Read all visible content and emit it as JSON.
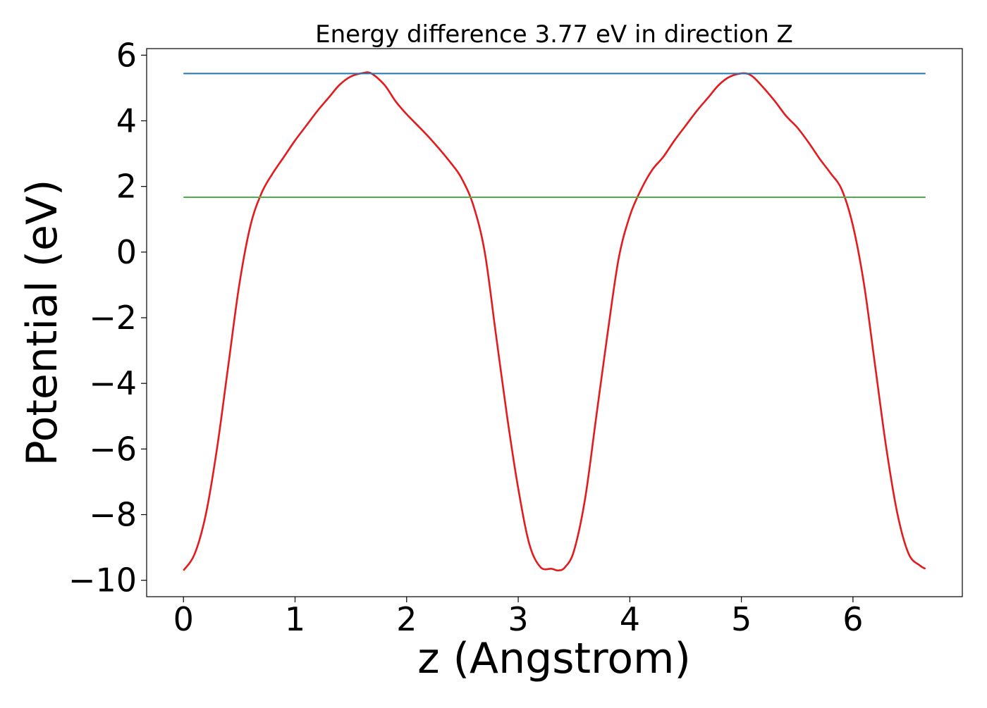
{
  "chart_data": {
    "type": "line",
    "title": "Energy difference 3.77 eV in direction Z",
    "xlabel": "z (Angstrom)",
    "ylabel": "Potential (eV)",
    "xlim": [
      -0.33,
      6.98
    ],
    "ylim": [
      -10.5,
      6.2
    ],
    "xticks": [
      0,
      1,
      2,
      3,
      4,
      5,
      6
    ],
    "yticks": [
      -10,
      -8,
      -6,
      -4,
      -2,
      0,
      2,
      4,
      6
    ],
    "xtick_labels": [
      "0",
      "1",
      "2",
      "3",
      "4",
      "5",
      "6"
    ],
    "ytick_labels": [
      "−10",
      "−8",
      "−6",
      "−4",
      "−2",
      "0",
      "2",
      "4",
      "6"
    ],
    "grid": false,
    "legend": "none",
    "series": [
      {
        "color": "#e41a1c",
        "kind": "curve",
        "x": [
          0,
          0.1,
          0.2,
          0.3,
          0.4,
          0.5,
          0.6,
          0.7,
          0.8,
          0.9,
          1.0,
          1.1,
          1.2,
          1.3,
          1.4,
          1.5,
          1.6,
          1.68,
          1.8,
          1.9,
          2.0,
          2.2,
          2.4,
          2.5,
          2.6,
          2.7,
          2.8,
          2.9,
          3.0,
          3.1,
          3.2,
          3.3,
          3.36,
          3.42,
          3.5,
          3.6,
          3.7,
          3.8,
          3.9,
          4.0,
          4.1,
          4.2,
          4.3,
          4.4,
          4.5,
          4.6,
          4.7,
          4.8,
          4.9,
          5.02,
          5.1,
          5.2,
          5.3,
          5.4,
          5.5,
          5.6,
          5.7,
          5.8,
          5.9,
          6.0,
          6.1,
          6.2,
          6.3,
          6.4,
          6.5,
          6.6,
          6.65
        ],
        "y": [
          -9.7,
          -9.2,
          -8.0,
          -6.0,
          -3.5,
          -1.0,
          0.8,
          1.8,
          2.4,
          2.9,
          3.4,
          3.85,
          4.3,
          4.7,
          5.1,
          5.35,
          5.45,
          5.45,
          5.1,
          4.6,
          4.2,
          3.5,
          2.7,
          2.2,
          1.4,
          0.0,
          -2.5,
          -5.0,
          -7.2,
          -8.9,
          -9.6,
          -9.65,
          -9.7,
          -9.6,
          -9.1,
          -7.5,
          -5.0,
          -2.5,
          -0.2,
          1.1,
          1.9,
          2.5,
          2.9,
          3.4,
          3.85,
          4.3,
          4.7,
          5.1,
          5.35,
          5.45,
          5.35,
          5.0,
          4.6,
          4.15,
          3.8,
          3.35,
          2.85,
          2.4,
          1.9,
          0.8,
          -1.0,
          -3.5,
          -6.0,
          -8.0,
          -9.2,
          -9.55,
          -9.65
        ]
      },
      {
        "color": "#1f77b4",
        "kind": "hline",
        "x": [
          0,
          6.65
        ],
        "y": [
          5.44,
          5.44
        ]
      },
      {
        "color": "#4daf4a",
        "kind": "hline",
        "x": [
          0,
          6.65
        ],
        "y": [
          1.67,
          1.67
        ]
      }
    ]
  }
}
